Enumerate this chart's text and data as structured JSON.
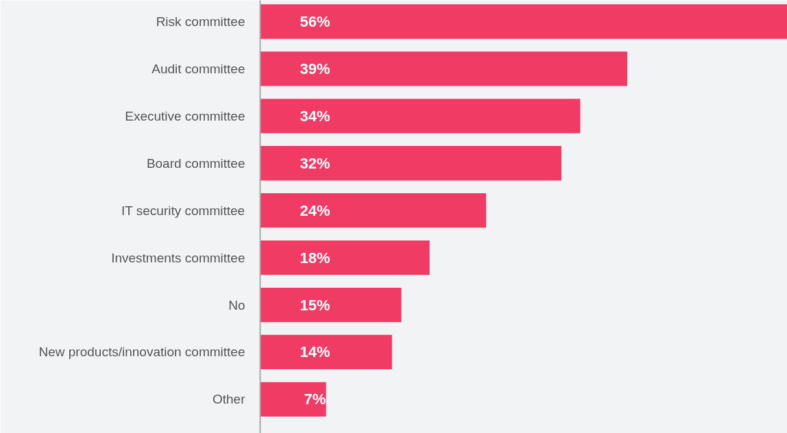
{
  "chart_data": {
    "type": "bar",
    "orientation": "horizontal",
    "tick_labels": "y",
    "categories": [
      "Risk committee",
      "Audit committee",
      "Executive committee",
      "Board committee",
      "IT security committee",
      "Investments committee",
      "No",
      "New products/innovation committee",
      "Other"
    ],
    "values": [
      56,
      39,
      34,
      32,
      24,
      18,
      15,
      14,
      7
    ],
    "value_labels": [
      "56%",
      "39%",
      "34%",
      "32%",
      "24%",
      "18%",
      "15%",
      "14%",
      "7%"
    ],
    "color": "#f03c64"
  }
}
